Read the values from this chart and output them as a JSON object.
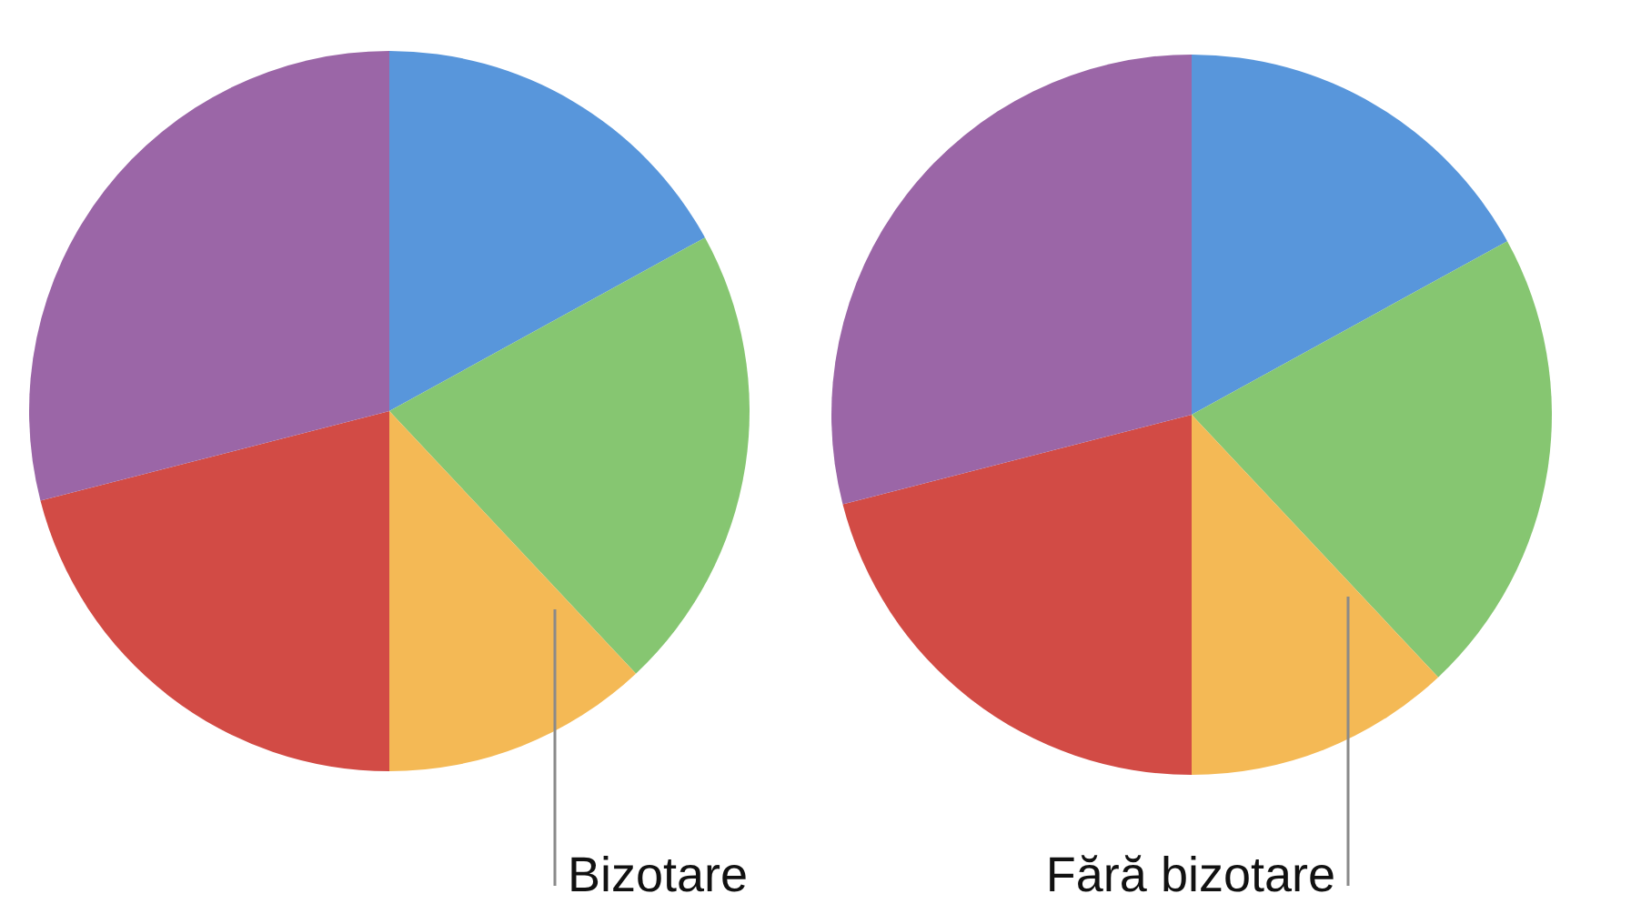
{
  "chart_data": [
    {
      "type": "pie",
      "categories": [
        null,
        null,
        null,
        null,
        null
      ],
      "values": [
        17,
        21,
        12,
        21,
        29
      ],
      "colors": [
        "#5896db",
        "#86c671",
        "#f4b955",
        "#d24b45",
        "#9b66a7"
      ],
      "annotations": [
        "Bizotare"
      ]
    },
    {
      "type": "pie",
      "categories": [
        null,
        null,
        null,
        null,
        null
      ],
      "values": [
        17,
        21,
        12,
        21,
        29
      ],
      "colors": [
        "#5896db",
        "#86c671",
        "#f4b955",
        "#d24b45",
        "#9b66a7"
      ],
      "annotations": [
        "Fără bizotare"
      ]
    }
  ]
}
